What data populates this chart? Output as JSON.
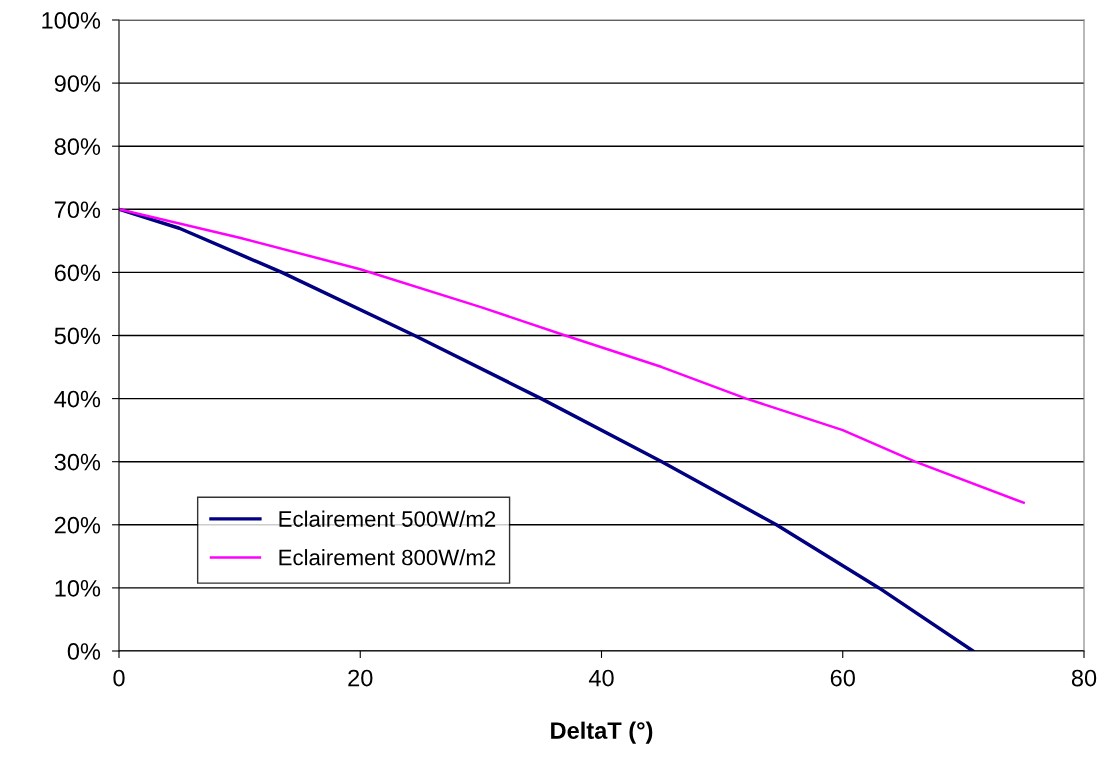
{
  "chart_data": {
    "type": "line",
    "xlabel": "DeltaT (°)",
    "xlim": [
      0,
      80
    ],
    "xticks": [
      0,
      20,
      40,
      60,
      80
    ],
    "ylim": [
      0,
      100
    ],
    "yticks": [
      {
        "value": 0,
        "label": "0%"
      },
      {
        "value": 10,
        "label": "10%"
      },
      {
        "value": 20,
        "label": "20%"
      },
      {
        "value": 30,
        "label": "30%"
      },
      {
        "value": 40,
        "label": "40%"
      },
      {
        "value": 50,
        "label": "50%"
      },
      {
        "value": 60,
        "label": "60%"
      },
      {
        "value": 70,
        "label": "70%"
      },
      {
        "value": 80,
        "label": "80%"
      },
      {
        "value": 90,
        "label": "90%"
      },
      {
        "value": 100,
        "label": "100%"
      }
    ],
    "grid": "y",
    "legend": "bottom left",
    "marker": "none",
    "line_style": "solid",
    "series": [
      {
        "name": "Eclairement 500W/m2",
        "color": "#000080",
        "x": [
          0,
          5,
          13.5,
          24.5,
          35,
          45,
          54.5,
          63,
          70.8
        ],
        "values": [
          70,
          67,
          60,
          50,
          40,
          30,
          20,
          10,
          0
        ]
      },
      {
        "name": "Eclairement 800W/m2",
        "color": "#ff00ff",
        "x": [
          0,
          10,
          20,
          30,
          37,
          45,
          52,
          60,
          66,
          75
        ],
        "values": [
          70,
          65.5,
          60.5,
          54.5,
          50,
          45,
          40,
          35,
          30,
          23.5
        ]
      }
    ]
  }
}
